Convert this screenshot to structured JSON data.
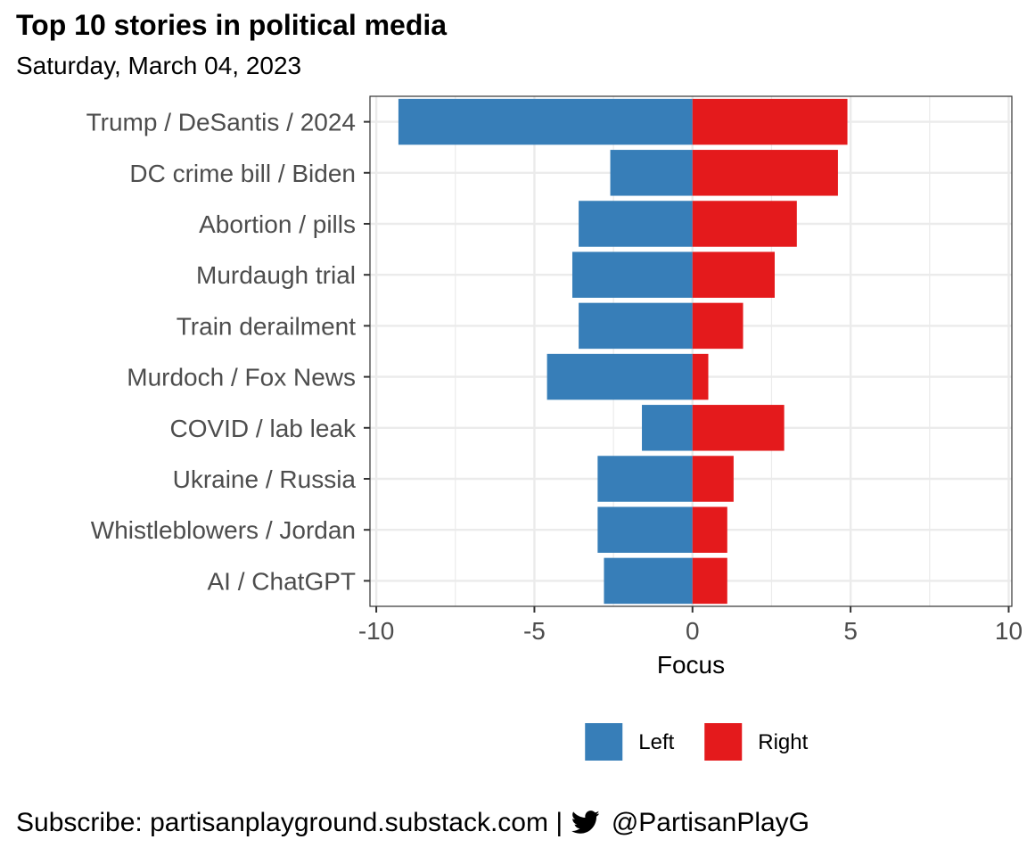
{
  "header": {
    "title": "Top 10 stories in political media",
    "subtitle": "Saturday, March 04, 2023"
  },
  "footer": {
    "subscribe": "Subscribe: partisanplayground.substack.com |",
    "handle": "@PartisanPlayG",
    "icon": "twitter-bird-icon"
  },
  "colors": {
    "left": "#377eb8",
    "right": "#e41a1c",
    "grid": "#ebebeb",
    "panel_border": "#333333"
  },
  "chart_data": {
    "type": "bar",
    "orientation": "horizontal",
    "stacked": "diverging",
    "categories": [
      "Trump / DeSantis / 2024",
      "DC crime bill / Biden",
      "Abortion / pills",
      "Murdaugh trial",
      "Train derailment",
      "Murdoch / Fox News",
      "COVID / lab leak",
      "Ukraine / Russia",
      "Whistleblowers / Jordan",
      "AI / ChatGPT"
    ],
    "series": [
      {
        "name": "Left",
        "color": "#377eb8",
        "values": [
          -9.3,
          -2.6,
          -3.6,
          -3.8,
          -3.6,
          -4.6,
          -1.6,
          -3.0,
          -3.0,
          -2.8
        ]
      },
      {
        "name": "Right",
        "color": "#e41a1c",
        "values": [
          4.9,
          4.6,
          3.3,
          2.6,
          1.6,
          0.5,
          2.9,
          1.3,
          1.1,
          1.1
        ]
      }
    ],
    "xlabel": "Focus",
    "ylabel": "",
    "xlim": [
      -10.2,
      10.1
    ],
    "xticks": [
      -10,
      -5,
      0,
      5,
      10
    ],
    "xtick_labels": [
      "-10",
      "-5",
      "0",
      "5",
      "10"
    ],
    "grid": true,
    "legend_position": "bottom"
  }
}
